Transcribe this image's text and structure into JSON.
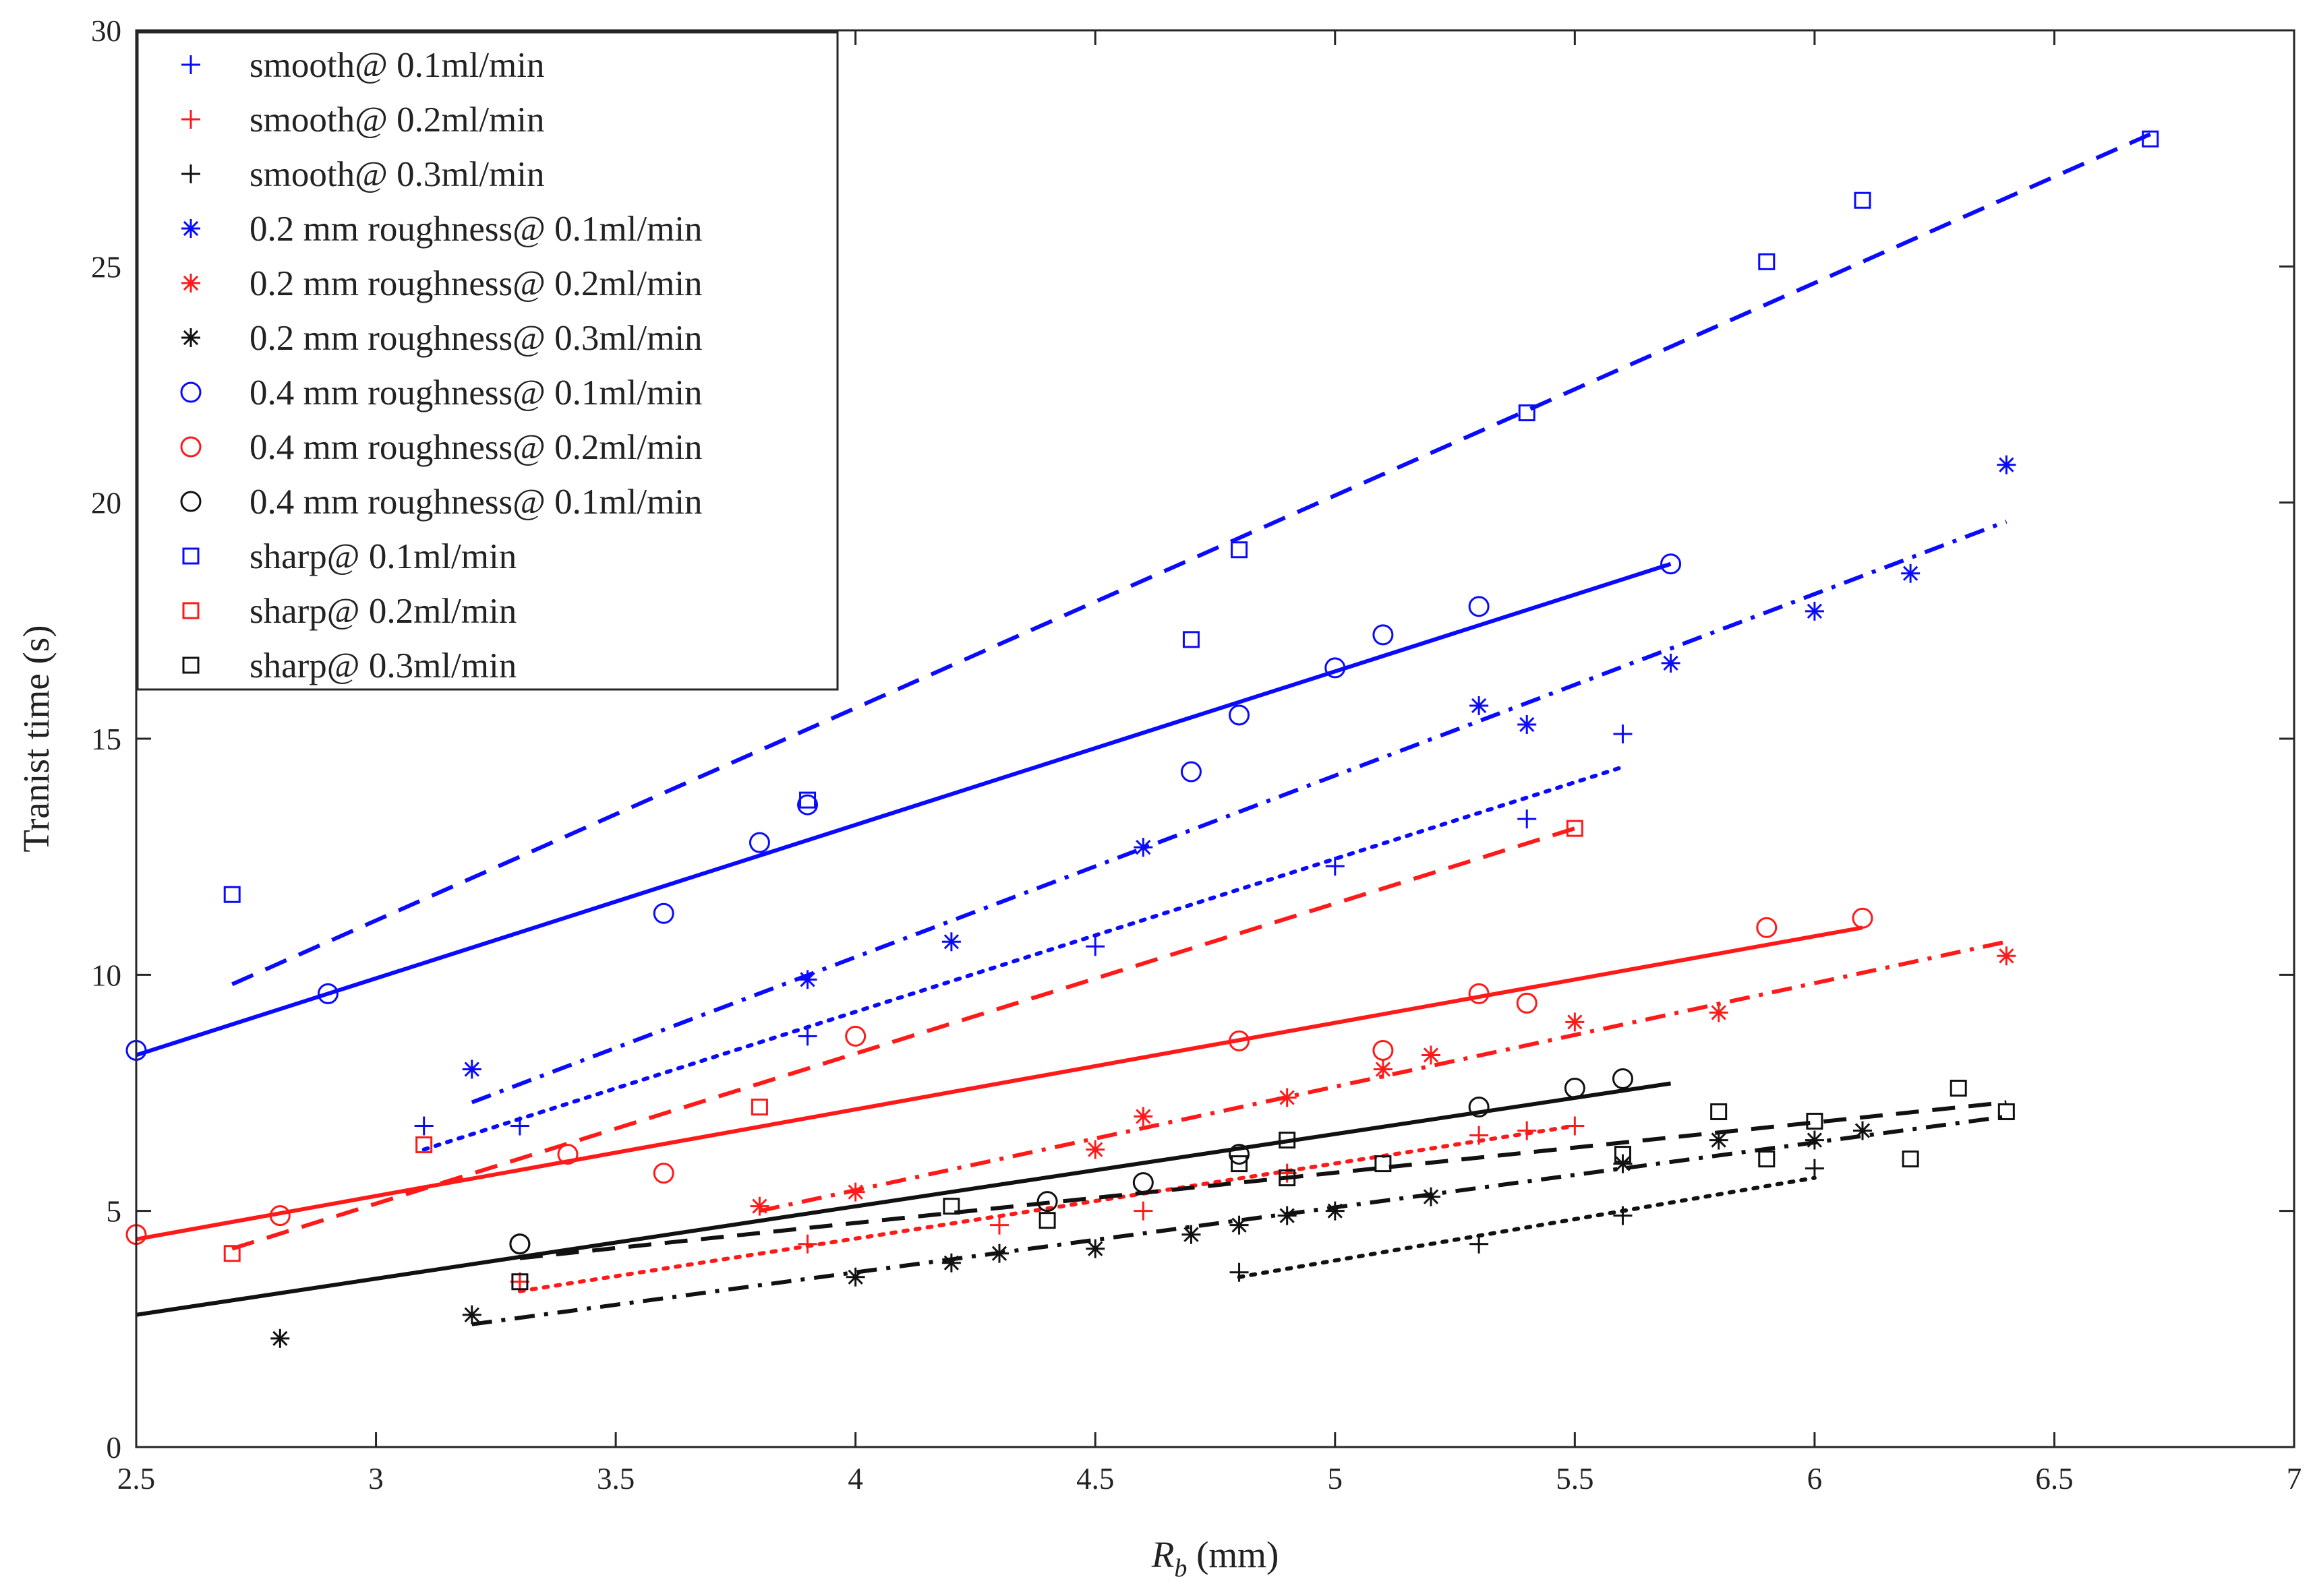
{
  "chart_data": {
    "type": "scatter",
    "title": "",
    "xlabel_main": "R",
    "xlabel_sub": "b",
    "xlabel_unit": " (mm)",
    "ylabel": "Tranist time (s)",
    "xlim": [
      2.5,
      7
    ],
    "ylim": [
      0,
      30
    ],
    "xticks": [
      2.5,
      3,
      3.5,
      4,
      4.5,
      5,
      5.5,
      6,
      6.5,
      7
    ],
    "xtick_labels": [
      "2.5",
      "3",
      "3.5",
      "4",
      "4.5",
      "5",
      "5.5",
      "6",
      "6.5",
      "7"
    ],
    "yticks": [
      0,
      5,
      10,
      15,
      20,
      25,
      30
    ],
    "ytick_labels": [
      "0",
      "5",
      "10",
      "15",
      "20",
      "25",
      "30"
    ],
    "grid": false,
    "legend_position": "top-left",
    "colors": {
      "blue": "#0a0aff",
      "red": "#ff1a1a",
      "black": "#111111"
    },
    "series": [
      {
        "name": "smooth@ 0.1ml/min",
        "color": "blue",
        "marker": "plus",
        "x": [
          3.1,
          3.3,
          3.9,
          4.5,
          5.0,
          5.4,
          5.6
        ],
        "y": [
          6.8,
          6.8,
          8.7,
          10.6,
          12.3,
          13.3,
          15.1
        ],
        "fit": {
          "x": [
            3.1,
            5.6
          ],
          "y": [
            6.3,
            14.4
          ],
          "dash": "dotted"
        }
      },
      {
        "name": "smooth@ 0.2ml/min",
        "color": "red",
        "marker": "plus",
        "x": [
          3.3,
          3.9,
          4.3,
          4.6,
          4.9,
          5.3,
          5.4,
          5.5
        ],
        "y": [
          3.5,
          4.3,
          4.7,
          5.0,
          5.8,
          6.6,
          6.7,
          6.8
        ],
        "fit": {
          "x": [
            3.3,
            5.5
          ],
          "y": [
            3.3,
            6.8
          ],
          "dash": "dotted"
        }
      },
      {
        "name": "smooth@ 0.3ml/min",
        "color": "black",
        "marker": "plus",
        "x": [
          4.8,
          5.3,
          5.6,
          6.0
        ],
        "y": [
          3.7,
          4.3,
          4.9,
          5.9
        ],
        "fit": {
          "x": [
            4.8,
            6.0
          ],
          "y": [
            3.6,
            5.7
          ],
          "dash": "dotted"
        }
      },
      {
        "name": "0.2 mm roughness@ 0.1ml/min",
        "color": "blue",
        "marker": "star",
        "x": [
          3.2,
          3.9,
          4.2,
          4.6,
          5.3,
          5.4,
          5.7,
          6.0,
          6.2,
          6.4
        ],
        "y": [
          8.0,
          9.9,
          10.7,
          12.7,
          15.7,
          15.3,
          16.6,
          17.7,
          18.5,
          20.8
        ],
        "fit": {
          "x": [
            3.2,
            6.4
          ],
          "y": [
            7.3,
            19.6
          ],
          "dash": "dashdot"
        }
      },
      {
        "name": "0.2 mm roughness@ 0.2ml/min",
        "color": "red",
        "marker": "star",
        "x": [
          3.8,
          4.0,
          4.5,
          4.6,
          4.9,
          5.1,
          5.2,
          5.5,
          5.8,
          6.4
        ],
        "y": [
          5.1,
          5.4,
          6.3,
          7.0,
          7.4,
          8.0,
          8.3,
          9.0,
          9.2,
          10.4
        ],
        "fit": {
          "x": [
            3.8,
            6.4
          ],
          "y": [
            5.0,
            10.7
          ],
          "dash": "dashdot"
        }
      },
      {
        "name": "0.2 mm roughness@ 0.3ml/min",
        "color": "black",
        "marker": "star",
        "x": [
          2.8,
          3.2,
          4.0,
          4.2,
          4.3,
          4.5,
          4.7,
          4.8,
          4.9,
          5.0,
          5.2,
          5.6,
          5.8,
          6.0,
          6.1
        ],
        "y": [
          2.3,
          2.8,
          3.6,
          3.9,
          4.1,
          4.2,
          4.5,
          4.7,
          4.9,
          5.0,
          5.3,
          6.0,
          6.5,
          6.5,
          6.7
        ],
        "fit": {
          "x": [
            3.2,
            6.4
          ],
          "y": [
            2.6,
            7.0
          ],
          "dash": "dashdot"
        }
      },
      {
        "name": "0.4 mm roughness@ 0.1ml/min",
        "color": "blue",
        "marker": "circle",
        "x": [
          2.5,
          2.9,
          3.6,
          3.8,
          3.9,
          4.7,
          4.8,
          5.0,
          5.1,
          5.3,
          5.7
        ],
        "y": [
          8.4,
          9.6,
          11.3,
          12.8,
          13.6,
          14.3,
          15.5,
          16.5,
          17.2,
          17.8,
          18.7
        ],
        "fit": {
          "x": [
            2.5,
            5.7
          ],
          "y": [
            8.3,
            18.7
          ],
          "dash": "solid"
        }
      },
      {
        "name": "0.4 mm roughness@ 0.2ml/min",
        "color": "red",
        "marker": "circle",
        "x": [
          2.5,
          2.8,
          3.4,
          3.6,
          4.0,
          4.8,
          5.1,
          5.3,
          5.4,
          5.9,
          6.1
        ],
        "y": [
          4.5,
          4.9,
          6.2,
          5.8,
          8.7,
          8.6,
          8.4,
          9.6,
          9.4,
          11.0,
          11.2
        ],
        "fit": {
          "x": [
            2.5,
            6.1
          ],
          "y": [
            4.4,
            11.0
          ],
          "dash": "solid"
        }
      },
      {
        "name": "0.4 mm roughness@ 0.1ml/min",
        "color": "black",
        "marker": "circle",
        "x": [
          3.3,
          3.3,
          4.4,
          4.6,
          4.8,
          5.3,
          5.5,
          5.6
        ],
        "y": [
          4.3,
          4.3,
          5.2,
          5.6,
          6.2,
          7.2,
          7.6,
          7.8
        ],
        "fit": {
          "x": [
            2.5,
            5.7
          ],
          "y": [
            2.8,
            7.7
          ],
          "dash": "solid"
        }
      },
      {
        "name": "sharp@ 0.1ml/min",
        "color": "blue",
        "marker": "square",
        "x": [
          2.7,
          3.9,
          4.7,
          4.8,
          5.4,
          5.9,
          6.1,
          6.7
        ],
        "y": [
          11.7,
          13.7,
          17.1,
          19.0,
          21.9,
          25.1,
          26.4,
          27.7
        ],
        "fit": {
          "x": [
            2.7,
            6.7
          ],
          "y": [
            9.8,
            27.8
          ],
          "dash": "dashed"
        }
      },
      {
        "name": "sharp@ 0.2ml/min",
        "color": "red",
        "marker": "square",
        "x": [
          2.7,
          3.1,
          3.8,
          5.5
        ],
        "y": [
          4.1,
          6.4,
          7.2,
          13.1
        ],
        "fit": {
          "x": [
            2.7,
            5.5
          ],
          "y": [
            4.2,
            13.1
          ],
          "dash": "dashed"
        }
      },
      {
        "name": "sharp@ 0.3ml/min",
        "color": "black",
        "marker": "square",
        "x": [
          3.3,
          4.2,
          4.4,
          4.8,
          4.9,
          4.9,
          5.1,
          5.6,
          5.8,
          5.9,
          6.0,
          6.2,
          6.3,
          6.4
        ],
        "y": [
          3.5,
          5.1,
          4.8,
          6.0,
          6.5,
          5.7,
          6.0,
          6.2,
          7.1,
          6.1,
          6.9,
          6.1,
          7.6,
          7.1
        ],
        "fit": {
          "x": [
            3.3,
            6.4
          ],
          "y": [
            4.0,
            7.3
          ],
          "dash": "dashed"
        }
      }
    ]
  }
}
